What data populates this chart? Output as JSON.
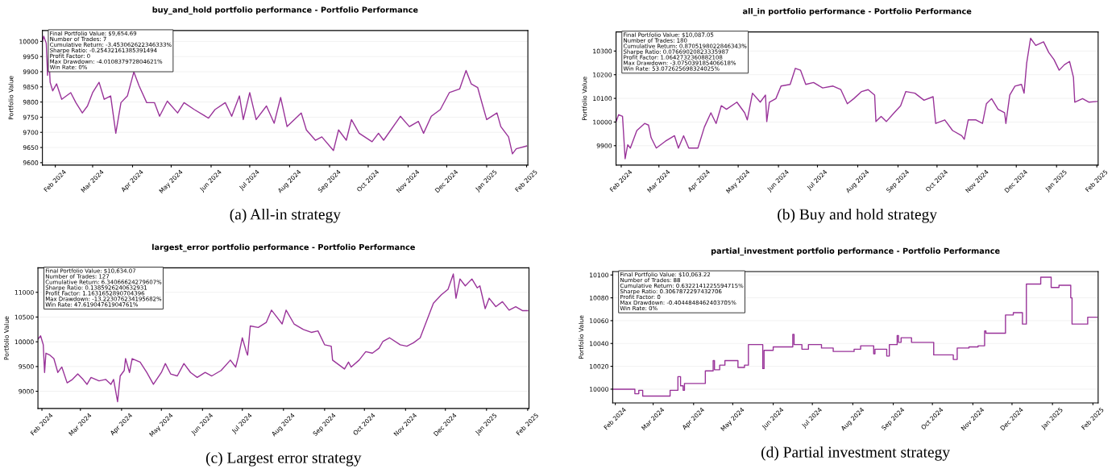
{
  "chart_data": [
    {
      "type": "line",
      "title": "buy_and_hold portfolio performance - Portfolio Performance",
      "ylabel": "Portfolio Value",
      "color": "#993399",
      "grid": "y",
      "x": [
        "2024-01-22",
        "2024-01-23",
        "2024-01-25",
        "2024-01-26",
        "2024-01-27",
        "2024-01-28",
        "2024-01-30",
        "2024-02-02",
        "2024-02-06",
        "2024-02-13",
        "2024-02-17",
        "2024-02-22",
        "2024-02-26",
        "2024-03-01",
        "2024-03-06",
        "2024-03-10",
        "2024-03-15",
        "2024-03-19",
        "2024-03-23",
        "2024-03-28",
        "2024-04-02",
        "2024-04-06",
        "2024-04-12",
        "2024-04-18",
        "2024-04-22",
        "2024-04-28",
        "2024-05-06",
        "2024-05-11",
        "2024-05-19",
        "2024-05-30",
        "2024-06-04",
        "2024-06-12",
        "2024-06-17",
        "2024-06-23",
        "2024-06-26",
        "2024-07-01",
        "2024-07-06",
        "2024-07-14",
        "2024-07-20",
        "2024-07-25",
        "2024-07-30",
        "2024-08-10",
        "2024-08-14",
        "2024-08-21",
        "2024-08-26",
        "2024-09-04",
        "2024-09-08",
        "2024-09-14",
        "2024-09-18",
        "2024-09-24",
        "2024-10-04",
        "2024-10-09",
        "2024-10-13",
        "2024-10-26",
        "2024-11-02",
        "2024-11-09",
        "2024-11-13",
        "2024-11-19",
        "2024-11-26",
        "2024-12-03",
        "2024-12-11",
        "2024-12-16",
        "2024-12-20",
        "2024-12-25",
        "2024-12-29",
        "2025-01-01",
        "2025-01-09",
        "2025-01-12",
        "2025-01-18",
        "2025-01-21",
        "2025-01-24",
        "2025-02-01"
      ],
      "values": [
        10000,
        10017,
        9994,
        9888,
        9955,
        9865,
        9837,
        9860,
        9809,
        9831,
        9798,
        9764,
        9787,
        9831,
        9865,
        9809,
        9820,
        9697,
        9798,
        9820,
        9899,
        9854,
        9798,
        9798,
        9753,
        9803,
        9764,
        9798,
        9775,
        9747,
        9775,
        9798,
        9753,
        9820,
        9742,
        9831,
        9742,
        9787,
        9730,
        9815,
        9719,
        9764,
        9708,
        9674,
        9685,
        9640,
        9708,
        9674,
        9742,
        9697,
        9669,
        9697,
        9674,
        9753,
        9719,
        9736,
        9697,
        9753,
        9775,
        9831,
        9843,
        9904,
        9860,
        9848,
        9787,
        9742,
        9764,
        9719,
        9685,
        9629,
        9646,
        9655
      ],
      "xlim": [
        "2024-01-22",
        "2025-02-02"
      ],
      "ylim": [
        9592,
        10036
      ],
      "yticks": [
        9600,
        9650,
        9700,
        9750,
        9800,
        9850,
        9900,
        9950,
        10000
      ],
      "xticks": [
        {
          "value": "2024-02",
          "label": "Feb 2024"
        },
        {
          "value": "2024-03",
          "label": "Mar 2024"
        },
        {
          "value": "2024-04",
          "label": "Apr 2024"
        },
        {
          "value": "2024-05",
          "label": "May 2024"
        },
        {
          "value": "2024-06",
          "label": "Jun 2024"
        },
        {
          "value": "2024-07",
          "label": "Jul 2024"
        },
        {
          "value": "2024-08",
          "label": "Aug 2024"
        },
        {
          "value": "2024-09",
          "label": "Sep 2024"
        },
        {
          "value": "2024-10",
          "label": "Oct 2024"
        },
        {
          "value": "2024-11",
          "label": "Nov 2024"
        },
        {
          "value": "2024-12",
          "label": "Dec 2024"
        },
        {
          "value": "2025-01",
          "label": "Jan 2025"
        },
        {
          "value": "2025-02",
          "label": "Feb 2025"
        }
      ],
      "annotations": [
        "Final Portfolio Value: $9,654.69\nNumber of Trades: 7\nCumulative Return: -3.453062622346333%\nSharpe Ratio: -0.25432161385391494\nProfit Factor: 0\nMax Drawdown: -4.010837972804621%\nWin Rate: 0%",
        "(a) All-in strategy"
      ]
    },
    {
      "type": "line",
      "title": "all_in portfolio performance - Portfolio Performance",
      "ylabel": "Portfolio Value",
      "color": "#993399",
      "grid": "y",
      "x": [
        "2024-01-28",
        "2024-01-30",
        "2024-02-02",
        "2024-02-04",
        "2024-02-06",
        "2024-02-08",
        "2024-02-13",
        "2024-02-19",
        "2024-02-22",
        "2024-02-24",
        "2024-02-28",
        "2024-03-06",
        "2024-03-13",
        "2024-03-16",
        "2024-03-20",
        "2024-03-24",
        "2024-03-31",
        "2024-04-05",
        "2024-04-10",
        "2024-04-14",
        "2024-04-18",
        "2024-04-22",
        "2024-04-30",
        "2024-05-06",
        "2024-05-08",
        "2024-05-12",
        "2024-05-18",
        "2024-05-22",
        "2024-05-23",
        "2024-05-25",
        "2024-05-30",
        "2024-06-03",
        "2024-06-10",
        "2024-06-14",
        "2024-06-18",
        "2024-06-22",
        "2024-06-28",
        "2024-07-05",
        "2024-07-13",
        "2024-07-19",
        "2024-07-24",
        "2024-07-29",
        "2024-08-04",
        "2024-08-09",
        "2024-08-14",
        "2024-08-15",
        "2024-08-19",
        "2024-08-23",
        "2024-08-29",
        "2024-09-03",
        "2024-09-07",
        "2024-09-14",
        "2024-09-21",
        "2024-09-28",
        "2024-09-30",
        "2024-10-07",
        "2024-10-13",
        "2024-10-20",
        "2024-10-22",
        "2024-10-25",
        "2024-10-31",
        "2024-11-05",
        "2024-11-08",
        "2024-11-12",
        "2024-11-17",
        "2024-11-22",
        "2024-11-23",
        "2024-11-26",
        "2024-11-30",
        "2024-12-05",
        "2024-12-07",
        "2024-12-09",
        "2024-12-12",
        "2024-12-16",
        "2024-12-22",
        "2024-12-26",
        "2024-12-30",
        "2025-01-03",
        "2025-01-07",
        "2025-01-11",
        "2025-01-14",
        "2025-01-15",
        "2025-01-21",
        "2025-01-26",
        "2025-02-01"
      ],
      "values": [
        10000,
        10031,
        10024,
        9845,
        9904,
        9890,
        9964,
        9994,
        9987,
        9934,
        9890,
        9919,
        9942,
        9890,
        9942,
        9890,
        9890,
        9979,
        10039,
        9994,
        10069,
        10054,
        10084,
        10039,
        10009,
        10122,
        10084,
        10114,
        10002,
        10084,
        10099,
        10152,
        10159,
        10227,
        10219,
        10159,
        10167,
        10144,
        10152,
        10137,
        10077,
        10099,
        10129,
        10137,
        10114,
        10002,
        10024,
        10002,
        10039,
        10069,
        10129,
        10122,
        10092,
        10107,
        9994,
        10009,
        9964,
        9942,
        9927,
        10009,
        10009,
        9994,
        10077,
        10099,
        10054,
        10039,
        9994,
        10114,
        10152,
        10159,
        10122,
        10249,
        10354,
        10324,
        10339,
        10294,
        10264,
        10219,
        10242,
        10256,
        10189,
        10084,
        10099,
        10084,
        10087
      ],
      "xlim": [
        "2024-01-28",
        "2025-02-02"
      ],
      "ylim": [
        9818,
        10381
      ],
      "yticks": [
        9900,
        10000,
        10100,
        10200,
        10300
      ],
      "xticks": [
        {
          "value": "2024-02",
          "label": "Feb 2024"
        },
        {
          "value": "2024-03",
          "label": "Mar 2024"
        },
        {
          "value": "2024-04",
          "label": "Apr 2024"
        },
        {
          "value": "2024-05",
          "label": "May 2024"
        },
        {
          "value": "2024-06",
          "label": "Jun 2024"
        },
        {
          "value": "2024-07",
          "label": "Jul 2024"
        },
        {
          "value": "2024-08",
          "label": "Aug 2024"
        },
        {
          "value": "2024-09",
          "label": "Sep 2024"
        },
        {
          "value": "2024-10",
          "label": "Oct 2024"
        },
        {
          "value": "2024-11",
          "label": "Nov 2024"
        },
        {
          "value": "2024-12",
          "label": "Dec 2024"
        },
        {
          "value": "2025-01",
          "label": "Jan 2025"
        },
        {
          "value": "2025-02",
          "label": "Feb 2025"
        }
      ],
      "annotations": [
        "Final Portfolio Value: $10,087.05\nNumber of Trades: 180\nCumulative Return: 0.8705198022846343%\nSharpe Ratio: 0.07669020823335987\nProfit Factor: 1.0642732360882108\nMax Drawdown: -3.075039185406618%\nWin Rate: 53.072625698324025%",
        "(b) Buy and hold strategy"
      ]
    },
    {
      "type": "line",
      "title": "largest_error portfolio performance - Portfolio Performance",
      "ylabel": "Portfolio Value",
      "color": "#993399",
      "grid": "y",
      "x": [
        "2024-01-29",
        "2024-01-31",
        "2024-02-02",
        "2024-02-03",
        "2024-02-04",
        "2024-02-07",
        "2024-02-10",
        "2024-02-13",
        "2024-02-16",
        "2024-02-20",
        "2024-02-24",
        "2024-02-28",
        "2024-03-03",
        "2024-03-06",
        "2024-03-09",
        "2024-03-15",
        "2024-03-20",
        "2024-03-24",
        "2024-03-26",
        "2024-03-29",
        "2024-03-31",
        "2024-04-03",
        "2024-04-04",
        "2024-04-07",
        "2024-04-09",
        "2024-04-15",
        "2024-04-20",
        "2024-04-25",
        "2024-05-01",
        "2024-05-04",
        "2024-05-08",
        "2024-05-13",
        "2024-05-18",
        "2024-05-23",
        "2024-05-28",
        "2024-06-03",
        "2024-06-08",
        "2024-06-15",
        "2024-06-22",
        "2024-06-26",
        "2024-06-28",
        "2024-07-01",
        "2024-07-04",
        "2024-07-05",
        "2024-07-07",
        "2024-07-13",
        "2024-07-19",
        "2024-07-23",
        "2024-07-27",
        "2024-07-31",
        "2024-08-03",
        "2024-08-09",
        "2024-08-16",
        "2024-08-22",
        "2024-08-27",
        "2024-09-01",
        "2024-09-06",
        "2024-09-07",
        "2024-09-16",
        "2024-09-19",
        "2024-09-21",
        "2024-09-27",
        "2024-10-02",
        "2024-10-07",
        "2024-10-12",
        "2024-10-15",
        "2024-10-20",
        "2024-10-28",
        "2024-11-02",
        "2024-11-07",
        "2024-11-12",
        "2024-11-17",
        "2024-11-22",
        "2024-11-28",
        "2024-12-03",
        "2024-12-07",
        "2024-12-09",
        "2024-12-12",
        "2024-12-16",
        "2024-12-21",
        "2024-12-25",
        "2024-12-27",
        "2024-12-31",
        "2025-01-03",
        "2025-01-08",
        "2025-01-13",
        "2025-01-18",
        "2025-01-23",
        "2025-01-28",
        "2025-02-01"
      ],
      "values": [
        10050,
        10120,
        9940,
        9380,
        9770,
        9730,
        9660,
        9380,
        9490,
        9170,
        9240,
        9350,
        9240,
        9140,
        9280,
        9210,
        9240,
        9140,
        9240,
        8790,
        9310,
        9420,
        9660,
        9380,
        9660,
        9590,
        9380,
        9140,
        9380,
        9560,
        9350,
        9310,
        9560,
        9380,
        9280,
        9380,
        9310,
        9420,
        9630,
        9490,
        9700,
        10080,
        9800,
        9730,
        10320,
        10290,
        10390,
        10640,
        10500,
        10360,
        10640,
        10360,
        10250,
        10190,
        10220,
        9940,
        9910,
        9630,
        9450,
        9590,
        9490,
        9630,
        9800,
        9770,
        9870,
        10010,
        10080,
        9940,
        9910,
        9980,
        10080,
        10430,
        10780,
        10950,
        11060,
        11370,
        10880,
        11270,
        11130,
        11270,
        11090,
        11130,
        10670,
        10880,
        10710,
        10810,
        10640,
        10710,
        10630,
        10630
      ],
      "xlim": [
        "2024-01-29",
        "2025-02-02"
      ],
      "ylim": [
        8652,
        11495
      ],
      "yticks": [
        9000,
        9500,
        10000,
        10500,
        11000
      ],
      "xticks": [
        {
          "value": "2024-02",
          "label": "Feb 2024"
        },
        {
          "value": "2024-03",
          "label": "Mar 2024"
        },
        {
          "value": "2024-04",
          "label": "Apr 2024"
        },
        {
          "value": "2024-05",
          "label": "May 2024"
        },
        {
          "value": "2024-06",
          "label": "Jun 2024"
        },
        {
          "value": "2024-07",
          "label": "Jul 2024"
        },
        {
          "value": "2024-08",
          "label": "Aug 2024"
        },
        {
          "value": "2024-09",
          "label": "Sep 2024"
        },
        {
          "value": "2024-10",
          "label": "Oct 2024"
        },
        {
          "value": "2024-11",
          "label": "Nov 2024"
        },
        {
          "value": "2024-12",
          "label": "Dec 2024"
        },
        {
          "value": "2025-01",
          "label": "Jan 2025"
        },
        {
          "value": "2025-02",
          "label": "Feb 2025"
        }
      ],
      "annotations": [
        "Final Portfolio Value: $10,634.07\nNumber of Trades: 127\nCumulative Return: 6.34066624279607%\nSharpe Ratio: 0.1385926240632931\nProfit Factor: 1.1631652890704396\nMax Drawdown: -13.223076234195682%\nWin Rate: 47.61904761904761%",
        "(c) Largest error strategy"
      ]
    },
    {
      "type": "step",
      "title": "partial_investment portfolio performance - Portfolio Performance",
      "ylabel": "Portfolio Value",
      "color": "#993399",
      "grid": "y",
      "x": [
        "2024-01-30",
        "2024-02-16",
        "2024-02-19",
        "2024-02-22",
        "2024-03-14",
        "2024-03-20",
        "2024-03-22",
        "2024-03-24",
        "2024-03-25",
        "2024-04-10",
        "2024-04-16",
        "2024-04-17",
        "2024-04-21",
        "2024-04-25",
        "2024-05-05",
        "2024-05-10",
        "2024-05-13",
        "2024-05-24",
        "2024-05-25",
        "2024-06-01",
        "2024-06-16",
        "2024-06-17",
        "2024-06-23",
        "2024-06-28",
        "2024-07-08",
        "2024-07-17",
        "2024-08-02",
        "2024-08-07",
        "2024-08-17",
        "2024-08-18",
        "2024-08-27",
        "2024-08-29",
        "2024-09-04",
        "2024-09-05",
        "2024-09-07",
        "2024-09-15",
        "2024-10-02",
        "2024-10-17",
        "2024-10-20",
        "2024-10-29",
        "2024-11-05",
        "2024-11-10",
        "2024-11-11",
        "2024-11-26",
        "2024-12-02",
        "2024-12-09",
        "2024-12-12",
        "2024-12-23",
        "2024-12-31",
        "2025-01-06",
        "2025-01-15",
        "2025-01-16",
        "2025-01-28",
        "2025-02-04"
      ],
      "values": [
        10000,
        9996,
        9999,
        9994,
        9999,
        10011,
        10003,
        9999,
        10005,
        10016,
        10025,
        10017,
        10021,
        10025,
        10019,
        10021,
        10039,
        10018,
        10034,
        10037,
        10048,
        10039,
        10035,
        10039,
        10036,
        10033,
        10035,
        10038,
        10031,
        10035,
        10029,
        10039,
        10047,
        10041,
        10045,
        10041,
        10030,
        10026,
        10036,
        10037,
        10038,
        10051,
        10049,
        10065,
        10067,
        10057,
        10092,
        10098,
        10089,
        10091,
        10080,
        10057,
        10063,
        10063
      ],
      "xlim": [
        "2024-01-30",
        "2025-02-05"
      ],
      "ylim": [
        9988,
        10103
      ],
      "yticks": [
        10000,
        10020,
        10040,
        10060,
        10080,
        10100
      ],
      "xticks": [
        {
          "value": "2024-02",
          "label": "Feb 2024"
        },
        {
          "value": "2024-03",
          "label": "Mar 2024"
        },
        {
          "value": "2024-04",
          "label": "Apr 2024"
        },
        {
          "value": "2024-05",
          "label": "May 2024"
        },
        {
          "value": "2024-06",
          "label": "Jun 2024"
        },
        {
          "value": "2024-07",
          "label": "Jul 2024"
        },
        {
          "value": "2024-08",
          "label": "Aug 2024"
        },
        {
          "value": "2024-09",
          "label": "Sep 2024"
        },
        {
          "value": "2024-10",
          "label": "Oct 2024"
        },
        {
          "value": "2024-11",
          "label": "Nov 2024"
        },
        {
          "value": "2024-12",
          "label": "Dec 2024"
        },
        {
          "value": "2025-01",
          "label": "Jan 2025"
        },
        {
          "value": "2025-02",
          "label": "Feb 2025"
        }
      ],
      "annotations": [
        "Final Portfolio Value: $10,063.22\nNumber of Trades: 88\nCumulative Return: 0.6322141225594715%\nSharpe Ratio: 0.3067872297432706\nProfit Factor: 0\nMax Drawdown: -0.4044848462403705%\nWin Rate: 0%",
        "(d) Partial investment strategy"
      ]
    }
  ]
}
